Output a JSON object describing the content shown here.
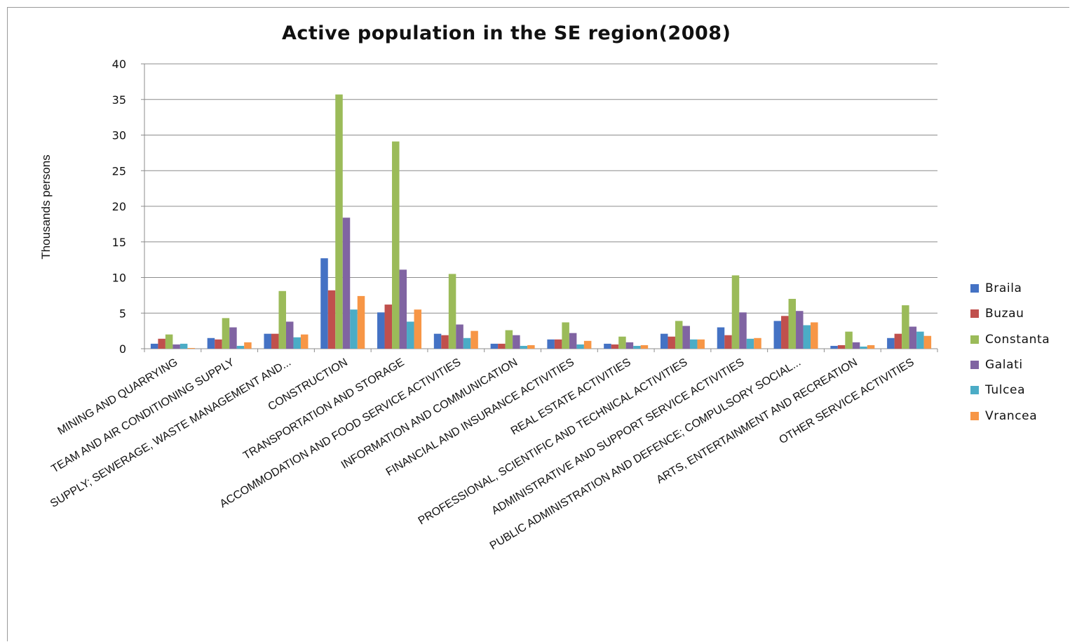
{
  "chart_data": {
    "type": "bar",
    "title": "Active population in the SE region(2008)",
    "ylabel": "Thousands persons",
    "ylim": [
      0,
      40
    ],
    "yticks": [
      0,
      5,
      10,
      15,
      20,
      25,
      30,
      35,
      40
    ],
    "grid": true,
    "legend_position": "right",
    "categories": [
      "MINING AND QUARRYING",
      "TEAM AND AIR CONDITIONING SUPPLY",
      "SUPPLY; SEWERAGE, WASTE MANAGEMENT AND...",
      "CONSTRUCTION",
      "TRANSPORTATION AND STORAGE",
      "ACCOMMODATION AND FOOD SERVICE ACTIVITIES",
      "INFORMATION AND COMMUNICATION",
      "FINANCIAL AND INSURANCE ACTIVITIES",
      "REAL ESTATE ACTIVITIES",
      "PROFESSIONAL, SCIENTIFIC AND TECHNICAL ACTIVITIES",
      "ADMINISTRATIVE AND SUPPORT SERVICE ACTIVITIES",
      "PUBLIC ADMINISTRATION AND DEFENCE; COMPULSORY SOCIAL...",
      "ARTS, ENTERTAINMENT AND RECREATION",
      "OTHER SERVICE ACTIVITIES"
    ],
    "series": [
      {
        "name": "Braila",
        "color": "#4472C4",
        "values": [
          0.7,
          1.5,
          2.1,
          12.7,
          5.1,
          2.1,
          0.7,
          1.3,
          0.7,
          2.1,
          3.0,
          3.9,
          0.4,
          1.5
        ]
      },
      {
        "name": "Buzau",
        "color": "#C0504D",
        "values": [
          1.4,
          1.3,
          2.1,
          8.2,
          6.2,
          1.9,
          0.7,
          1.3,
          0.6,
          1.7,
          1.9,
          4.6,
          0.5,
          2.1
        ]
      },
      {
        "name": "Constanta",
        "color": "#9BBB59",
        "values": [
          2.0,
          4.3,
          8.1,
          35.7,
          29.1,
          10.5,
          2.6,
          3.7,
          1.7,
          3.9,
          10.3,
          7.0,
          2.4,
          6.1
        ]
      },
      {
        "name": "Galati",
        "color": "#8064A2",
        "values": [
          0.6,
          3.0,
          3.8,
          18.4,
          11.1,
          3.4,
          1.9,
          2.2,
          0.9,
          3.2,
          5.1,
          5.3,
          0.9,
          3.1
        ]
      },
      {
        "name": "Tulcea",
        "color": "#4BACC6",
        "values": [
          0.7,
          0.4,
          1.6,
          5.5,
          3.8,
          1.5,
          0.4,
          0.6,
          0.4,
          1.3,
          1.4,
          3.3,
          0.3,
          2.4
        ]
      },
      {
        "name": "Vrancea",
        "color": "#F79646",
        "values": [
          0.1,
          0.9,
          2.0,
          7.4,
          5.5,
          2.5,
          0.5,
          1.1,
          0.5,
          1.3,
          1.5,
          3.7,
          0.5,
          1.8
        ]
      }
    ]
  }
}
